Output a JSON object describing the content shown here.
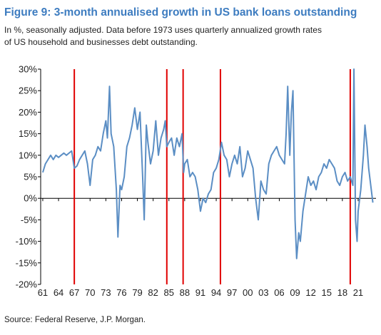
{
  "chart_data": {
    "type": "line",
    "title": "Figure 9: 3-month annualised growth in US bank loans outstanding",
    "subtitle": [
      "In %, seasonally adjusted. Data before 1973 uses quarterly annualized growth rates",
      "of US household and businesses debt outstanding."
    ],
    "source": "Source: Federal Reserve, J.P. Morgan.",
    "x": [
      1961,
      1961.5,
      1962,
      1962.5,
      1963,
      1963.5,
      1964,
      1964.5,
      1965,
      1965.5,
      1966,
      1966.5,
      1967,
      1967.5,
      1968,
      1968.5,
      1969,
      1969.5,
      1970,
      1970.5,
      1971,
      1971.5,
      1972,
      1972.5,
      1973,
      1973.3,
      1973.7,
      1974,
      1974.5,
      1975,
      1975.3,
      1975.7,
      1976,
      1976.5,
      1977,
      1977.5,
      1978,
      1978.5,
      1979,
      1979.5,
      1980,
      1980.3,
      1980.7,
      1981,
      1981.5,
      1982,
      1982.5,
      1983,
      1983.5,
      1984,
      1984.3,
      1984.6,
      1985,
      1985.5,
      1986,
      1986.5,
      1987,
      1987.5,
      1987.8,
      1988,
      1988.5,
      1989,
      1989.5,
      1990,
      1990.5,
      1991,
      1991.5,
      1992,
      1992.5,
      1993,
      1993.5,
      1994,
      1994.5,
      1995,
      1995.5,
      1996,
      1996.5,
      1997,
      1997.5,
      1998,
      1998.5,
      1999,
      1999.5,
      2000,
      2000.5,
      2001,
      2001.5,
      2002,
      2002.5,
      2003,
      2003.5,
      2004,
      2004.5,
      2005,
      2005.5,
      2006,
      2006.5,
      2007,
      2007.3,
      2007.6,
      2008,
      2008.3,
      2008.6,
      2009,
      2009.3,
      2009.7,
      2010,
      2010.5,
      2011,
      2011.5,
      2012,
      2012.5,
      2013,
      2013.5,
      2014,
      2014.5,
      2015,
      2015.5,
      2016,
      2016.5,
      2017,
      2017.5,
      2018,
      2018.5,
      2019,
      2019.5,
      2020,
      2020.2,
      2020.5,
      2020.8,
      2021,
      2021.5,
      2022,
      2022.3,
      2022.7,
      2023,
      2023.5,
      2023.8
    ],
    "series": [
      {
        "name": "US bank loans growth",
        "color": "#5b8ec4",
        "values": [
          6,
          8,
          9,
          10,
          9,
          10,
          9.5,
          10,
          10.5,
          10,
          10.5,
          11,
          7,
          7.5,
          9,
          10,
          11,
          8,
          3,
          9,
          10,
          12,
          11,
          15,
          18,
          14,
          26,
          15,
          12,
          2,
          -9,
          3,
          2,
          5,
          12,
          14,
          17,
          21,
          16,
          20,
          5,
          -5,
          17,
          13,
          8,
          11,
          18,
          10,
          14,
          16,
          18,
          12,
          13,
          14,
          10,
          14,
          12,
          15,
          6,
          8,
          9,
          5,
          6,
          5,
          2,
          -3,
          0,
          -1,
          1,
          2,
          6,
          7,
          9,
          13,
          10,
          9,
          5,
          8,
          10,
          8,
          12,
          5,
          7,
          11,
          9,
          7,
          0,
          -5,
          4,
          2,
          1,
          8,
          10,
          11,
          12,
          10,
          9,
          8,
          15,
          26,
          10,
          20,
          25,
          -5,
          -14,
          -8,
          -10,
          -3,
          1,
          5,
          3,
          4,
          2,
          5,
          6,
          8,
          7,
          9,
          8,
          7,
          4,
          3,
          5,
          6,
          4,
          5,
          3,
          30,
          -5,
          -10,
          -3,
          2,
          10,
          17,
          12,
          7,
          2,
          -1
        ]
      }
    ],
    "vlines": [
      1967,
      1984.6,
      1987.7,
      1994.8,
      2019.5
    ],
    "vline_color": "#e00000",
    "xlim": [
      1960.6,
      2024.4
    ],
    "xticks": [
      {
        "value": 1961,
        "label": "61"
      },
      {
        "value": 1964,
        "label": "64"
      },
      {
        "value": 1967,
        "label": "67"
      },
      {
        "value": 1970,
        "label": "70"
      },
      {
        "value": 1973,
        "label": "73"
      },
      {
        "value": 1976,
        "label": "76"
      },
      {
        "value": 1979,
        "label": "79"
      },
      {
        "value": 1982,
        "label": "82"
      },
      {
        "value": 1985,
        "label": "85"
      },
      {
        "value": 1988,
        "label": "88"
      },
      {
        "value": 1991,
        "label": "91"
      },
      {
        "value": 1994,
        "label": "94"
      },
      {
        "value": 1997,
        "label": "97"
      },
      {
        "value": 2000,
        "label": "00"
      },
      {
        "value": 2003,
        "label": "03"
      },
      {
        "value": 2006,
        "label": "06"
      },
      {
        "value": 2009,
        "label": "09"
      },
      {
        "value": 2012,
        "label": "12"
      },
      {
        "value": 2015,
        "label": "15"
      },
      {
        "value": 2018,
        "label": "18"
      },
      {
        "value": 2021,
        "label": "21"
      }
    ],
    "ylim": [
      -20,
      30
    ],
    "yticks": [
      {
        "value": -20,
        "label": "-20%"
      },
      {
        "value": -15,
        "label": "-15%"
      },
      {
        "value": -10,
        "label": "-10%"
      },
      {
        "value": -5,
        "label": "-5%"
      },
      {
        "value": 0,
        "label": "0%"
      },
      {
        "value": 5,
        "label": "5%"
      },
      {
        "value": 10,
        "label": "10%"
      },
      {
        "value": 15,
        "label": "15%"
      },
      {
        "value": 20,
        "label": "20%"
      },
      {
        "value": 25,
        "label": "25%"
      },
      {
        "value": 30,
        "label": "30%"
      }
    ]
  }
}
